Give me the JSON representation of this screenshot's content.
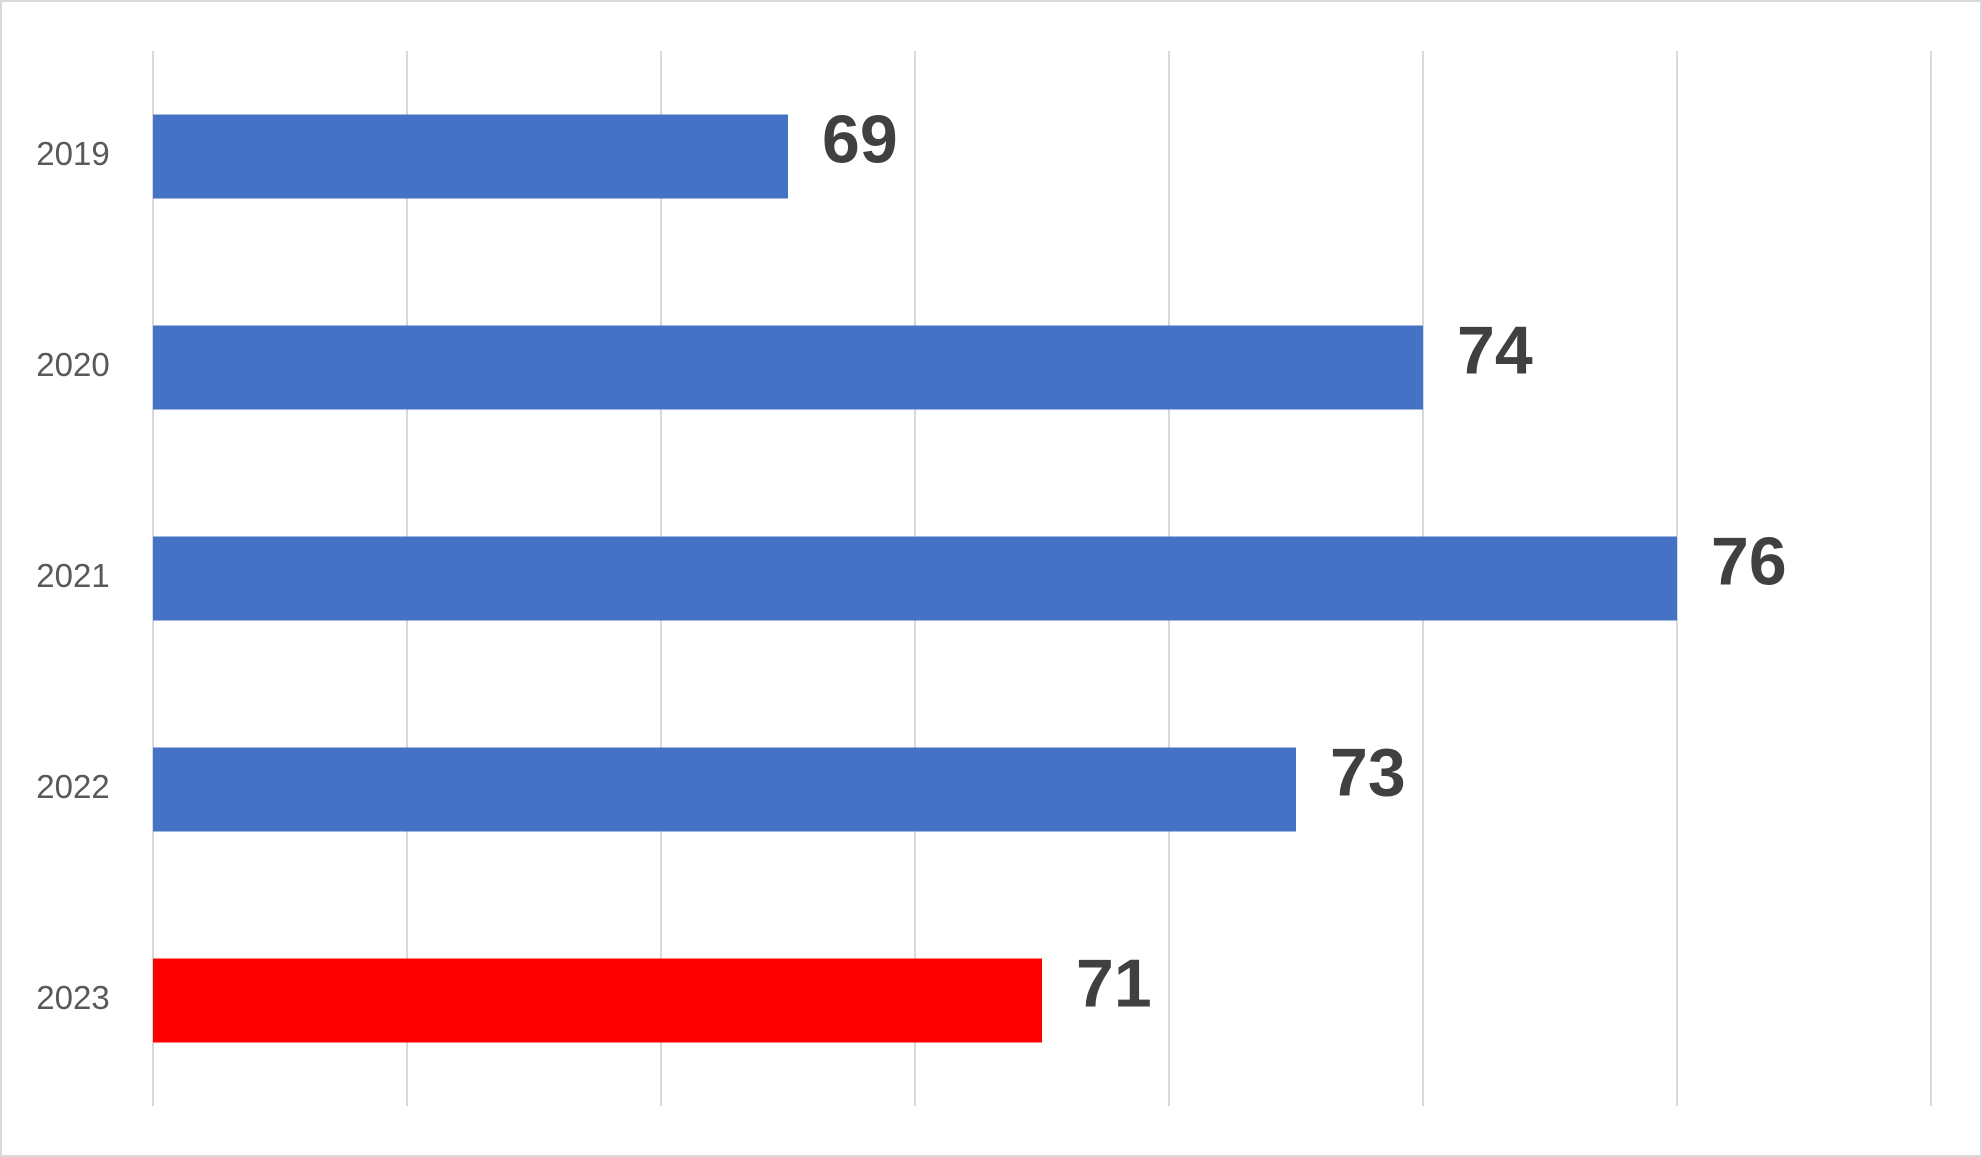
{
  "chart_data": {
    "type": "bar",
    "orientation": "horizontal",
    "categories": [
      "2019",
      "2020",
      "2021",
      "2022",
      "2023"
    ],
    "values": [
      69,
      74,
      76,
      73,
      71
    ],
    "colors": [
      "#4472c4",
      "#4472c4",
      "#4472c4",
      "#4472c4",
      "#ff0000"
    ],
    "xlim": [
      64,
      78
    ],
    "xticks": [
      64,
      66,
      68,
      70,
      72,
      74,
      76,
      78
    ],
    "grid": true
  }
}
